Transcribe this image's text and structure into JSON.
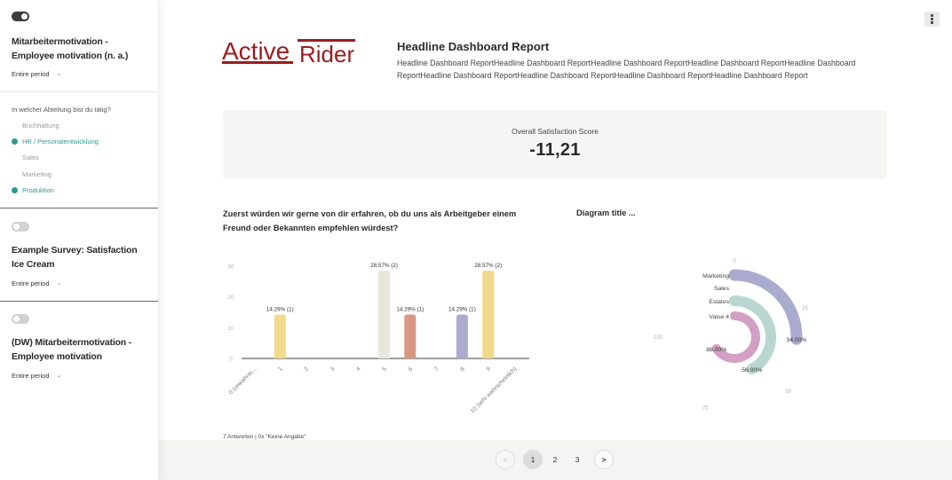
{
  "sidebar": {
    "surveys": [
      {
        "title": "Mitarbeitermotivation - Employee motivation (n. a.)",
        "period": "Entire period",
        "active": true,
        "filter": {
          "question": "In welcher Abteilung bist du tätig?",
          "options": [
            {
              "label": "Buchhaltung",
              "selected": false
            },
            {
              "label": "HR / Personalentwicklung",
              "selected": true
            },
            {
              "label": "Sales",
              "selected": false
            },
            {
              "label": "Marketing",
              "selected": false
            },
            {
              "label": "Produktion",
              "selected": true
            }
          ]
        }
      },
      {
        "title": "Example Survey: Satisfaction Ice Cream",
        "period": "Entire period",
        "active": false
      },
      {
        "title": "(DW) Mitarbeitermotivation - Employee motivation",
        "period": "Entire period",
        "active": false
      }
    ],
    "chevron": "⌄"
  },
  "header": {
    "logo": {
      "word1": "Active",
      "word2": "Rider",
      "color": "#9b1c1f"
    },
    "title": "Headline Dashboard Report",
    "description": "Headline Dashboard ReportHeadline Dashboard ReportHeadline Dashboard ReportHeadline Dashboard ReportHeadline Dashboard ReportHeadline Dashboard ReportHeadline Dashboard ReportHeadline Dashboard ReportHeadline Dashboard Report",
    "menu_icon": "kebab-menu-icon"
  },
  "kpi": {
    "label": "Overall Satisfaction Score",
    "value": "-11,21"
  },
  "pagination": {
    "prev": "<",
    "next": ">",
    "pages": [
      "1",
      "2",
      "3"
    ],
    "current": "1"
  },
  "colors": {
    "accent_teal": "#2a9a92",
    "toggle_on": "#3d3d3d",
    "toggle_off": "#d2d2d2",
    "kpi_bg": "#f5f5f4",
    "brand_red": "#9b1c1f"
  },
  "chart_data": [
    {
      "type": "bar",
      "title": "Zuerst würden wir gerne von dir erfahren, ob du uns als Arbeitgeber einem Freund oder Bekannten empfehlen würdest?",
      "categories": [
        "0 (unwahrsc...",
        "1",
        "2",
        "3",
        "4",
        "5",
        "6",
        "7",
        "8",
        "9",
        "10 (sehr wahrscheinlich)"
      ],
      "values": [
        0,
        14.29,
        0,
        0,
        0,
        28.57,
        14.29,
        0,
        14.29,
        28.57,
        0
      ],
      "counts": [
        0,
        1,
        0,
        0,
        0,
        2,
        1,
        0,
        1,
        2,
        0
      ],
      "labels": [
        "",
        "14.29% (1)",
        "",
        "",
        "",
        "28.57% (2)",
        "14.29% (1)",
        "",
        "14.29% (1)",
        "28.57% (2)",
        ""
      ],
      "colors": [
        null,
        "#f0d98a",
        null,
        null,
        null,
        "#e9e7dc",
        "#da9882",
        null,
        "#a9abcf",
        "#f0d98a",
        null
      ],
      "yticks": [
        0,
        10,
        20,
        30
      ],
      "ylim": [
        0,
        30
      ],
      "xlabel": "",
      "ylabel": "",
      "grid": false,
      "footer": "7 Antworten | 0x \"Keine Angabe\""
    },
    {
      "type": "radial-bar",
      "title": "Diagram title ...",
      "categories": [
        "Marketing",
        "Sales",
        "Estates",
        "Value 4"
      ],
      "values": [
        34,
        0,
        56,
        88
      ],
      "labels": [
        "34.00%",
        "",
        "56.00%",
        "88.00%"
      ],
      "colors": [
        "#a9abcf",
        "#c9c9c9",
        "#b9d7d0",
        "#d39fc4"
      ],
      "ticks": [
        0,
        25,
        50,
        75,
        100
      ],
      "range": [
        0,
        100
      ]
    }
  ]
}
